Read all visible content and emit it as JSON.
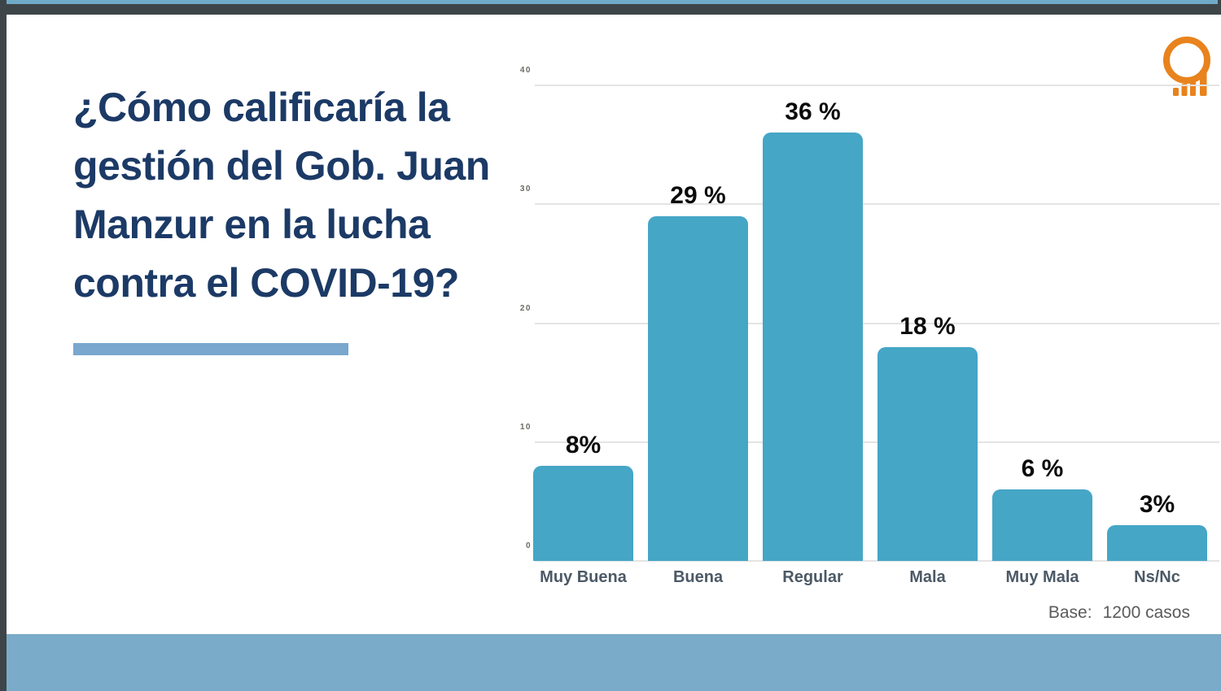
{
  "slide": {
    "title_lines": [
      "¿Cómo calificaría la",
      "gestión del Gob. Juan",
      "Manzur en la lucha",
      "contra el COVID-19?"
    ],
    "base_label": "Base:",
    "base_value": "1200 casos"
  },
  "logo": {
    "name": "q-bars-logo",
    "color": "#E8831D"
  },
  "colors": {
    "title_text": "#1C3A66",
    "bar_fill": "#45A6C6",
    "accent_bar": "#79A7CE",
    "footer_bar": "#7AABC8",
    "top_strip_blue": "#6FABC8",
    "frame_dark": "#3E4548",
    "gridline": "#E4E4E4",
    "ytick_text": "#6E6A66",
    "category_text": "#4C5966",
    "value_text": "#0B0B0B",
    "base_text": "#5B5B5B"
  },
  "chart_data": {
    "type": "bar",
    "title": "¿Cómo calificaría la gestión del Gob. Juan Manzur en la lucha contra el COVID-19?",
    "categories": [
      "Muy Buena",
      "Buena",
      "Regular",
      "Mala",
      "Muy Mala",
      "Ns/Nc"
    ],
    "values": [
      8,
      29,
      36,
      18,
      6,
      3
    ],
    "value_labels": [
      "8%",
      "29 %",
      "36 %",
      "18 %",
      "6 %",
      "3%"
    ],
    "xlabel": "",
    "ylabel": "",
    "ylim": [
      0,
      40
    ],
    "yticks": [
      0,
      10,
      20,
      30,
      40
    ],
    "grid": true,
    "legend": false,
    "bar_color": "#45A6C6",
    "note": "Base: 1200 casos"
  }
}
